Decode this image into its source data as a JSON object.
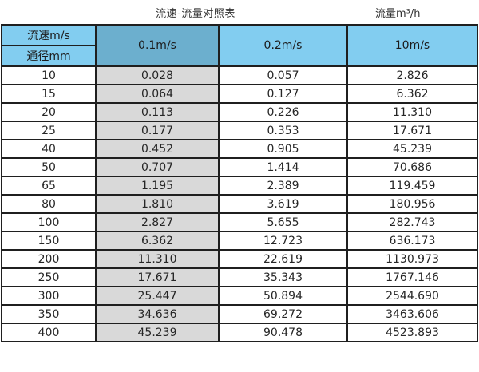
{
  "page": {
    "title": "流速-流量对照表",
    "unit_label": "流量m³/h"
  },
  "table": {
    "corner": {
      "top": "流速m/s",
      "bottom": "通径mm"
    },
    "velocity_columns": [
      "0.1m/s",
      "0.2m/s",
      "10m/s"
    ],
    "rows": [
      {
        "diameter": "10",
        "values": [
          "0.028",
          "0.057",
          "2.826"
        ]
      },
      {
        "diameter": "15",
        "values": [
          "0.064",
          "0.127",
          "6.362"
        ]
      },
      {
        "diameter": "20",
        "values": [
          "0.113",
          "0.226",
          "11.310"
        ]
      },
      {
        "diameter": "25",
        "values": [
          "0.177",
          "0.353",
          "17.671"
        ]
      },
      {
        "diameter": "40",
        "values": [
          "0.452",
          "0.905",
          "45.239"
        ]
      },
      {
        "diameter": "50",
        "values": [
          "0.707",
          "1.414",
          "70.686"
        ]
      },
      {
        "diameter": "65",
        "values": [
          "1.195",
          "2.389",
          "119.459"
        ]
      },
      {
        "diameter": "80",
        "values": [
          "1.810",
          "3.619",
          "180.956"
        ]
      },
      {
        "diameter": "100",
        "values": [
          "2.827",
          "5.655",
          "282.743"
        ]
      },
      {
        "diameter": "150",
        "values": [
          "6.362",
          "12.723",
          "636.173"
        ]
      },
      {
        "diameter": "200",
        "values": [
          "11.310",
          "22.619",
          "1130.973"
        ]
      },
      {
        "diameter": "250",
        "values": [
          "17.671",
          "35.343",
          "1767.146"
        ]
      },
      {
        "diameter": "300",
        "values": [
          "25.447",
          "50.894",
          "2544.690"
        ]
      },
      {
        "diameter": "350",
        "values": [
          "34.636",
          "69.272",
          "3463.606"
        ]
      },
      {
        "diameter": "400",
        "values": [
          "45.239",
          "90.478",
          "4523.893"
        ]
      }
    ]
  },
  "colors": {
    "header_light_blue": "#82CDF0",
    "header_steel_blue": "#6CAFCE",
    "column_gray": "#D9D9D9",
    "border": "#1F1F1F"
  },
  "chart_data": {
    "type": "table",
    "title": "流速-流量对照表",
    "unit_note": "流量m³/h",
    "columns": [
      "通径mm",
      "0.1m/s",
      "0.2m/s",
      "10m/s"
    ],
    "rows": [
      [
        10,
        0.028,
        0.057,
        2.826
      ],
      [
        15,
        0.064,
        0.127,
        6.362
      ],
      [
        20,
        0.113,
        0.226,
        11.31
      ],
      [
        25,
        0.177,
        0.353,
        17.671
      ],
      [
        40,
        0.452,
        0.905,
        45.239
      ],
      [
        50,
        0.707,
        1.414,
        70.686
      ],
      [
        65,
        1.195,
        2.389,
        119.459
      ],
      [
        80,
        1.81,
        3.619,
        180.956
      ],
      [
        100,
        2.827,
        5.655,
        282.743
      ],
      [
        150,
        6.362,
        12.723,
        636.173
      ],
      [
        200,
        11.31,
        22.619,
        1130.973
      ],
      [
        250,
        17.671,
        35.343,
        1767.146
      ],
      [
        300,
        25.447,
        50.894,
        2544.69
      ],
      [
        350,
        34.636,
        69.272,
        3463.606
      ],
      [
        400,
        45.239,
        90.478,
        4523.893
      ]
    ]
  }
}
